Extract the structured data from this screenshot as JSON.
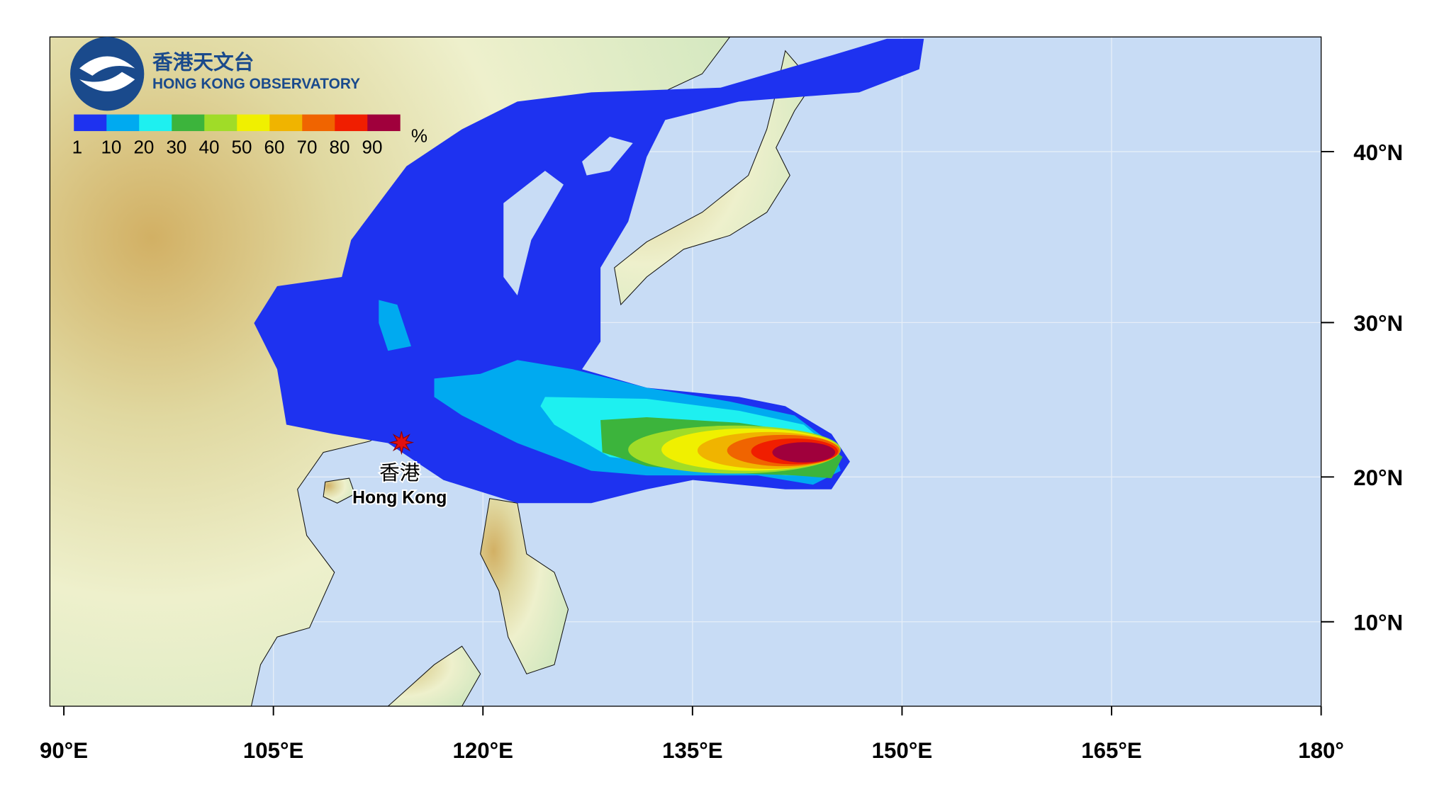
{
  "header": {
    "title_zh": "香港天文台",
    "title_en": "HONG KONG OBSERVATORY"
  },
  "legend": {
    "levels": [
      1,
      10,
      20,
      30,
      40,
      50,
      60,
      70,
      80,
      90
    ],
    "colors": [
      "#1e32f0",
      "#00aaf0",
      "#1ef0f0",
      "#3cb43c",
      "#a0dc28",
      "#f0f000",
      "#f0b400",
      "#f06400",
      "#f01e00",
      "#a0003c"
    ],
    "unit": "%"
  },
  "map": {
    "projection": "mercator",
    "grid": true,
    "xlim": [
      89,
      180
    ],
    "ylim": [
      4,
      46
    ],
    "xticks": [
      {
        "value": 90,
        "label": "90°E"
      },
      {
        "value": 105,
        "label": "105°E"
      },
      {
        "value": 120,
        "label": "120°E"
      },
      {
        "value": 135,
        "label": "135°E"
      },
      {
        "value": 150,
        "label": "150°E"
      },
      {
        "value": 165,
        "label": "165°E"
      },
      {
        "value": 180,
        "label": "180°"
      }
    ],
    "yticks": [
      {
        "value": 10,
        "label": "10°N"
      },
      {
        "value": 20,
        "label": "20°N"
      },
      {
        "value": 30,
        "label": "30°N"
      },
      {
        "value": 40,
        "label": "40°N"
      }
    ],
    "marker": {
      "label_zh": "香港",
      "label_en": "Hong Kong",
      "lon": 114.17,
      "lat": 22.3
    }
  }
}
